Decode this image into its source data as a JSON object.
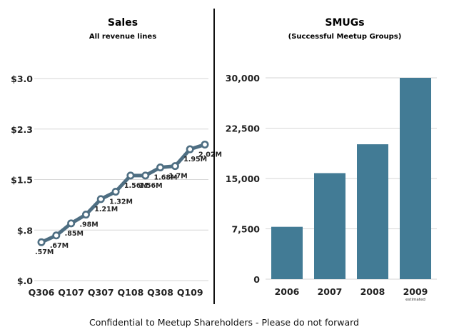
{
  "colors": {
    "series": "#4e6e82",
    "bar": "#427b95",
    "divider": "#111111",
    "grid": "#d6d6d6",
    "marker_fill": "#ffffff"
  },
  "footer": "Confidential to Meetup Shareholders - Please do not forward",
  "chart_data": [
    {
      "type": "line",
      "title": "Sales",
      "subtitle": "All revenue lines",
      "xlabel": "",
      "ylabel": "",
      "ylim": [
        0,
        3.0
      ],
      "yticks": [
        {
          "value": 0,
          "label": "$.0"
        },
        {
          "value": 0.75,
          "label": "$.8"
        },
        {
          "value": 1.5,
          "label": "$1.5"
        },
        {
          "value": 2.25,
          "label": "$2.3"
        },
        {
          "value": 3.0,
          "label": "$3.0"
        }
      ],
      "xtick_labels": [
        "Q306",
        "Q107",
        "Q307",
        "Q108",
        "Q308",
        "Q109"
      ],
      "x": [
        "Q306",
        "Q406",
        "Q107",
        "Q207",
        "Q307",
        "Q407",
        "Q108",
        "Q208",
        "Q308",
        "Q408",
        "Q109",
        "Q209"
      ],
      "values": [
        0.57,
        0.67,
        0.85,
        0.98,
        1.21,
        1.32,
        1.56,
        1.56,
        1.68,
        1.7,
        1.95,
        2.02
      ],
      "data_labels": [
        ".57M",
        ".67M",
        ".85M",
        ".98M",
        "1.21M",
        "1.32M",
        "1.56M",
        "1.56M",
        "1.68M",
        "1.7M",
        "1.95M",
        "2.02M"
      ],
      "grid": true,
      "marker": "open circle"
    },
    {
      "type": "bar",
      "title": "SMUGs",
      "subtitle": "(Successful Meetup Groups)",
      "xlabel": "",
      "ylabel": "",
      "ylim": [
        0,
        30000
      ],
      "yticks": [
        {
          "value": 0,
          "label": "0"
        },
        {
          "value": 7500,
          "label": "7,500"
        },
        {
          "value": 15000,
          "label": "15,000"
        },
        {
          "value": 22500,
          "label": "22,500"
        },
        {
          "value": 30000,
          "label": "30,000"
        }
      ],
      "categories": [
        "2006",
        "2007",
        "2008",
        "2009"
      ],
      "category_notes": [
        "",
        "",
        "",
        "estimated"
      ],
      "values": [
        7800,
        15800,
        20100,
        30000
      ],
      "grid": true
    }
  ]
}
